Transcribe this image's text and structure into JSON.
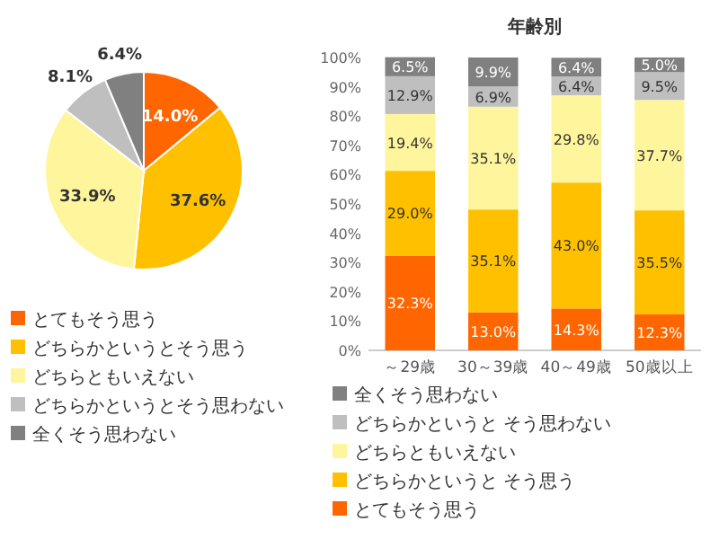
{
  "chart_data": [
    {
      "type": "pie",
      "categories": [
        "とてもそう思う",
        "どちらかというとそう思う",
        "どちらともいえない",
        "どちらかというとそう思わない",
        "全くそう思わない"
      ],
      "values": [
        14.0,
        37.6,
        33.9,
        8.1,
        6.4
      ],
      "colors": [
        "#ff6600",
        "#ffc000",
        "#fff59d",
        "#bfbfbf",
        "#808080"
      ],
      "value_labels": [
        "14.0%",
        "37.6%",
        "33.9%",
        "8.1%",
        "6.4%"
      ],
      "legend": "bottom"
    },
    {
      "type": "bar",
      "title": "年齢別",
      "categories": [
        "～29歳",
        "30～39歳",
        "40～49歳",
        "50歳以上"
      ],
      "stacked": true,
      "ylim": [
        0,
        100
      ],
      "yticks": [
        {
          "value": 0,
          "label": "0%"
        },
        {
          "value": 10,
          "label": "10%"
        },
        {
          "value": 20,
          "label": "20%"
        },
        {
          "value": 30,
          "label": "30%"
        },
        {
          "value": 40,
          "label": "40%"
        },
        {
          "value": 50,
          "label": "50%"
        },
        {
          "value": 60,
          "label": "60%"
        },
        {
          "value": 70,
          "label": "70%"
        },
        {
          "value": 80,
          "label": "80%"
        },
        {
          "value": 90,
          "label": "90%"
        },
        {
          "value": 100,
          "label": "100%"
        }
      ],
      "legend": "bottom",
      "series": [
        {
          "name": "とてもそう思う",
          "color": "#ff6600",
          "values": [
            32.3,
            13.0,
            14.3,
            12.3
          ],
          "value_labels": [
            "32.3%",
            "13.0%",
            "14.3%",
            "12.3%"
          ]
        },
        {
          "name": "どちらかというと そう思う",
          "color": "#ffc000",
          "values": [
            29.0,
            35.1,
            43.0,
            35.5
          ],
          "value_labels": [
            "29.0%",
            "35.1%",
            "43.0%",
            "35.5%"
          ]
        },
        {
          "name": "どちらともいえない",
          "color": "#fff59d",
          "values": [
            19.4,
            35.1,
            29.8,
            37.7
          ],
          "value_labels": [
            "19.4%",
            "35.1%",
            "29.8%",
            "37.7%"
          ]
        },
        {
          "name": "どちらかというと そう思わない",
          "color": "#bfbfbf",
          "values": [
            12.9,
            6.9,
            6.4,
            9.5
          ],
          "value_labels": [
            "12.9%",
            "6.9%",
            "6.4%",
            "9.5%"
          ]
        },
        {
          "name": "全くそう思わない",
          "color": "#808080",
          "values": [
            6.5,
            9.9,
            6.4,
            5.0
          ],
          "value_labels": [
            "6.5%",
            "9.9%",
            "6.4%",
            "5.0%"
          ]
        }
      ]
    }
  ]
}
